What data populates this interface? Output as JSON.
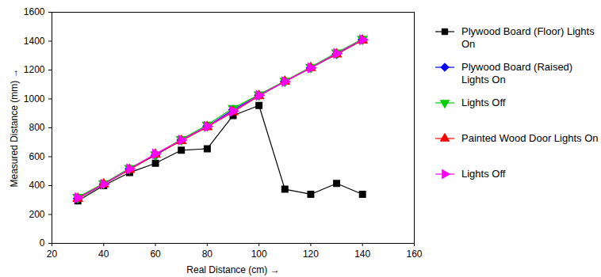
{
  "chart_data": {
    "type": "line",
    "x_label": "Real Distance (cm)",
    "y_label": "Measured Distance (mm)",
    "x": [
      30,
      40,
      50,
      60,
      70,
      80,
      90,
      100,
      110,
      120,
      130,
      140
    ],
    "series": [
      {
        "name": "Plywood Board (Floor) Lights On",
        "color": "#000000",
        "marker": "square",
        "line_style": "solid",
        "values": [
          295,
          400,
          490,
          555,
          645,
          655,
          885,
          955,
          375,
          340,
          415,
          340
        ]
      },
      {
        "name": "Plywood Board (Raised) Lights On",
        "color": "#0000ff",
        "marker": "diamond",
        "line_style": "solid",
        "values": [
          310,
          410,
          515,
          610,
          715,
          810,
          925,
          1025,
          1120,
          1215,
          1310,
          1410
        ]
      },
      {
        "name": "Lights Off",
        "color": "#00cc00",
        "marker": "triangle-down",
        "line_style": "solid",
        "values": [
          320,
          415,
          520,
          615,
          720,
          820,
          935,
          1030,
          1125,
          1220,
          1320,
          1415
        ]
      },
      {
        "name": "Painted Wood Door Lights On",
        "color": "#ff0000",
        "marker": "triangle-up",
        "line_style": "solid",
        "values": [
          310,
          410,
          510,
          615,
          710,
          805,
          910,
          1020,
          1120,
          1215,
          1310,
          1405
        ]
      },
      {
        "name": "Lights Off",
        "color": "#ff00ff",
        "marker": "triangle-right",
        "line_style": "solid",
        "values": [
          315,
          410,
          515,
          620,
          715,
          810,
          915,
          1025,
          1120,
          1215,
          1315,
          1410
        ]
      }
    ],
    "xlim": [
      20,
      160
    ],
    "xticks": [
      20,
      40,
      60,
      80,
      100,
      120,
      140,
      160
    ],
    "ylim": [
      0,
      1600
    ],
    "yticks": [
      0,
      200,
      400,
      600,
      800,
      1000,
      1200,
      1400,
      1600
    ],
    "grid": false,
    "legend": "right"
  }
}
